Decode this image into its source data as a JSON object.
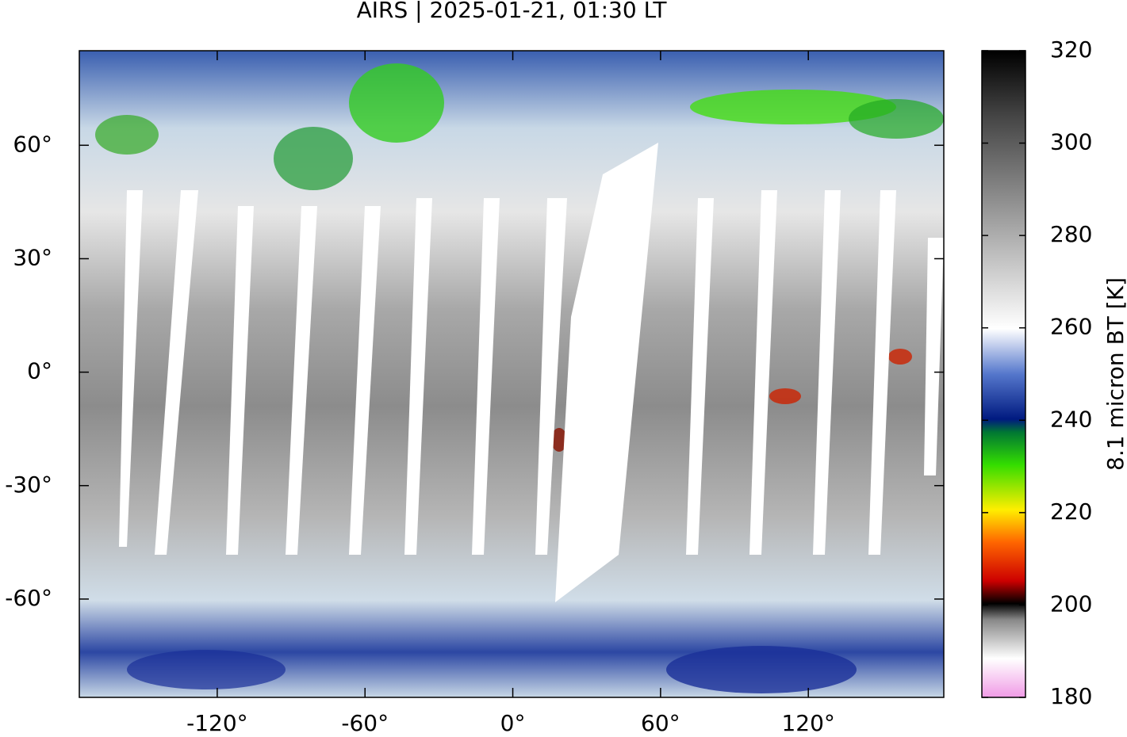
{
  "map": {
    "title": "AIRS | 2025-01-21, 01:30 LT",
    "xlim": [
      -176,
      175
    ],
    "ylim": [
      -86,
      85
    ],
    "xticks": [
      {
        "value": -120,
        "label": "-120°"
      },
      {
        "value": -60,
        "label": "-60°"
      },
      {
        "value": 0,
        "label": "0°"
      },
      {
        "value": 60,
        "label": "60°"
      },
      {
        "value": 120,
        "label": "120°"
      }
    ],
    "yticks": [
      {
        "value": -60,
        "label": "-60°"
      },
      {
        "value": -30,
        "label": "-30°"
      },
      {
        "value": 0,
        "label": "0°"
      },
      {
        "value": 30,
        "label": "30°"
      },
      {
        "value": 60,
        "label": "60°"
      }
    ],
    "colorbar": {
      "label": "8.1 micron BT [K]",
      "lim": [
        180,
        320
      ],
      "ticks": [
        180,
        200,
        220,
        240,
        260,
        280,
        300,
        320
      ]
    }
  }
}
